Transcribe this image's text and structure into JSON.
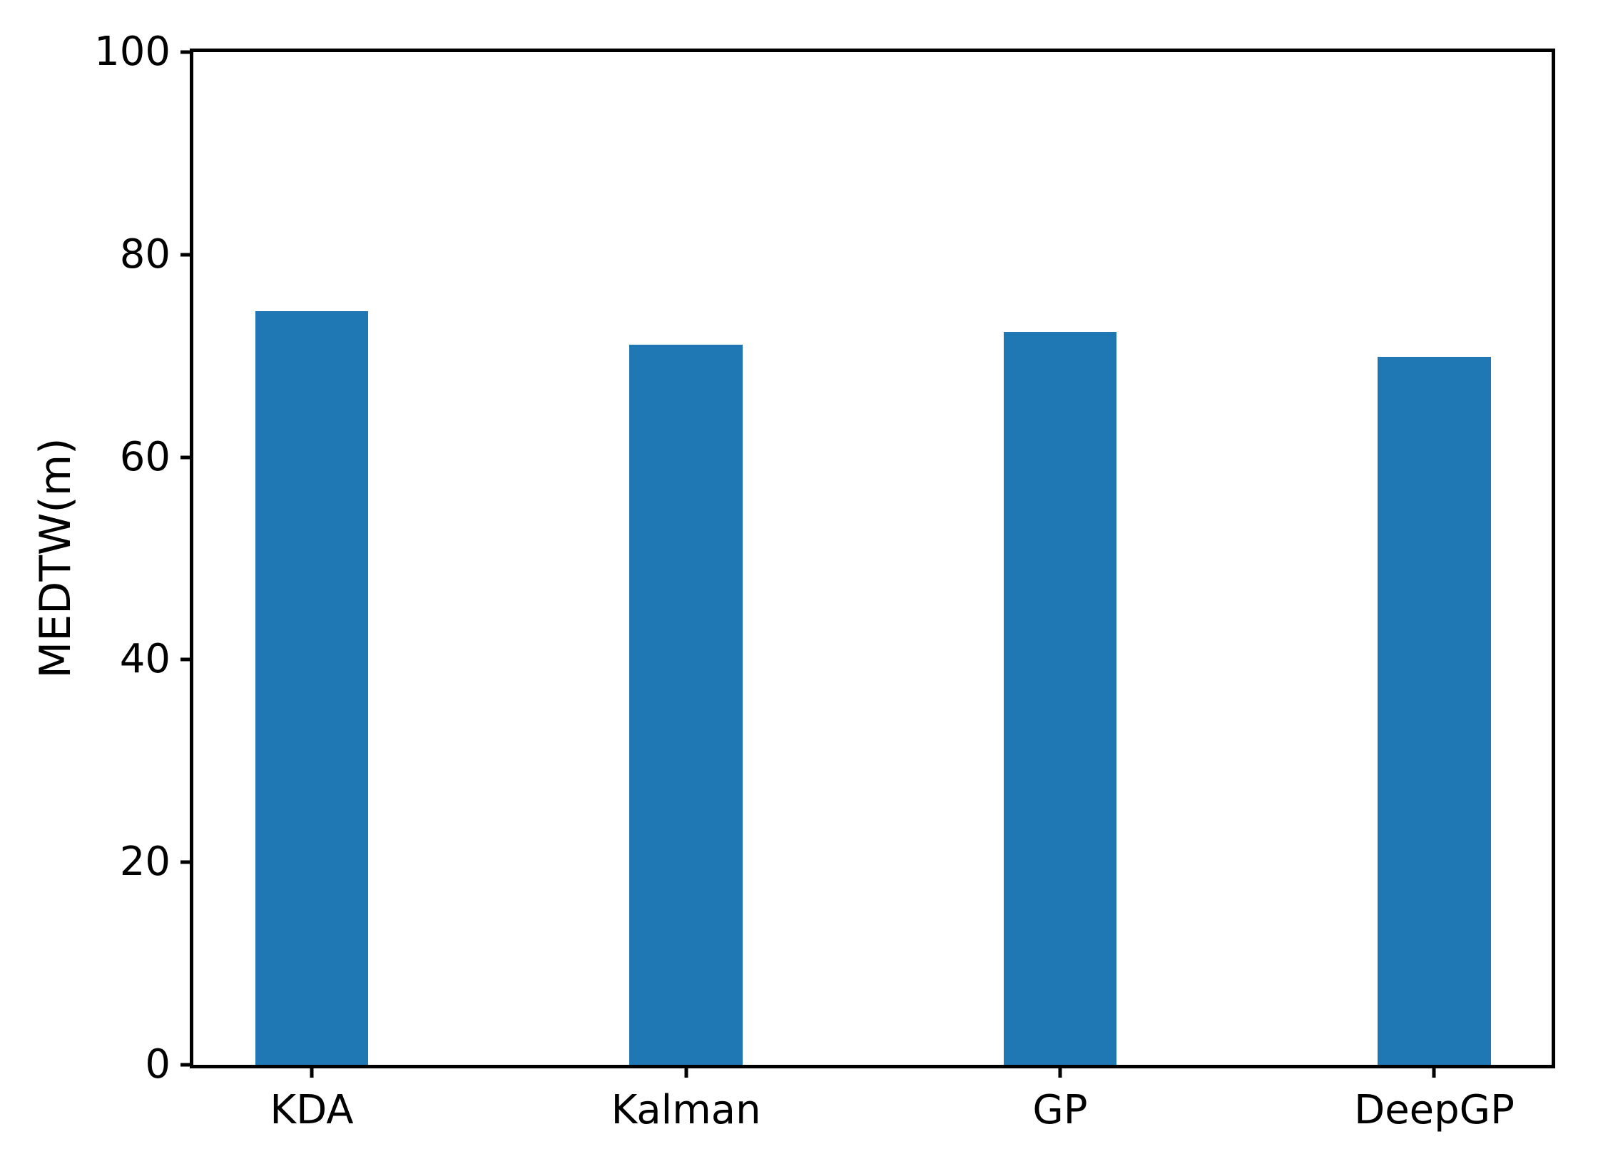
{
  "chart_data": {
    "type": "bar",
    "categories": [
      "KDA",
      "Kalman",
      "GP",
      "DeepGP"
    ],
    "values": [
      74.4,
      71.1,
      72.4,
      69.9
    ],
    "title": "",
    "xlabel": "",
    "ylabel": "MEDTW(m)",
    "ylim": [
      0,
      100
    ],
    "yticks": [
      0,
      20,
      40,
      60,
      80,
      100
    ],
    "bar_color": "#1f77b4",
    "axis_color": "#000000",
    "background_color": "#ffffff",
    "grid": false,
    "legend": null
  }
}
